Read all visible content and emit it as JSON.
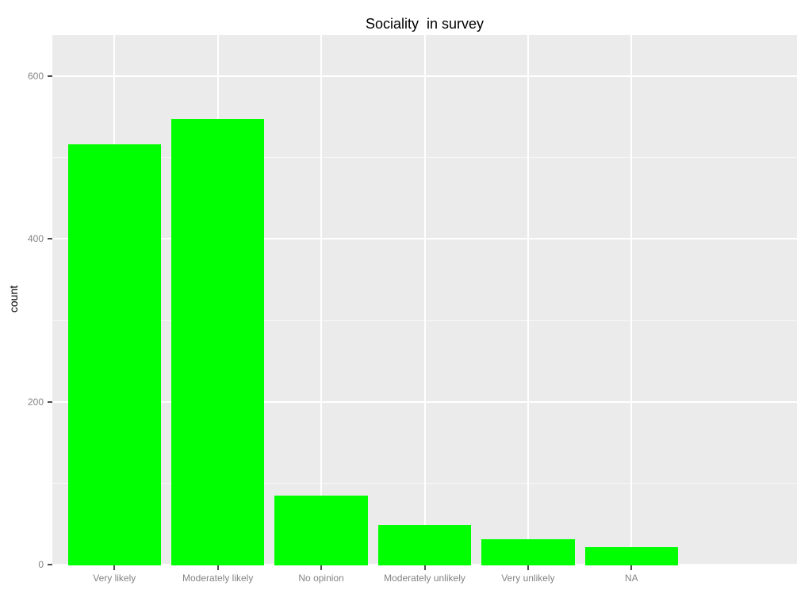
{
  "title": "Sociality  in survey",
  "y_axis_title": "count",
  "chart_data": {
    "type": "bar",
    "title": "Sociality  in survey",
    "xlabel": "",
    "ylabel": "count",
    "categories": [
      "Very likely",
      "Moderately likely",
      "No opinion",
      "Moderately unlikely",
      "Very unlikely",
      "NA"
    ],
    "values": [
      516,
      547,
      85,
      49,
      31,
      21
    ],
    "ylim": [
      0,
      650
    ],
    "yticks": [
      0,
      200,
      400,
      600
    ],
    "ytick_labels": [
      "0",
      "200",
      "400",
      "600"
    ],
    "minor_yticks": [
      100,
      300,
      500
    ],
    "grid": "major-and-minor, white on gray panel",
    "legend_position": "none",
    "bar_fill_color": "#00FF00",
    "panel_background_color": "#EBEBEB",
    "grid_color": "#FFFFFF",
    "axis_text_color": "#848484",
    "tick_mark_color": "#4D4D4D",
    "title_color": "#000000",
    "bar_relative_width": 0.9,
    "discrete_axis_padding": 0.6
  }
}
